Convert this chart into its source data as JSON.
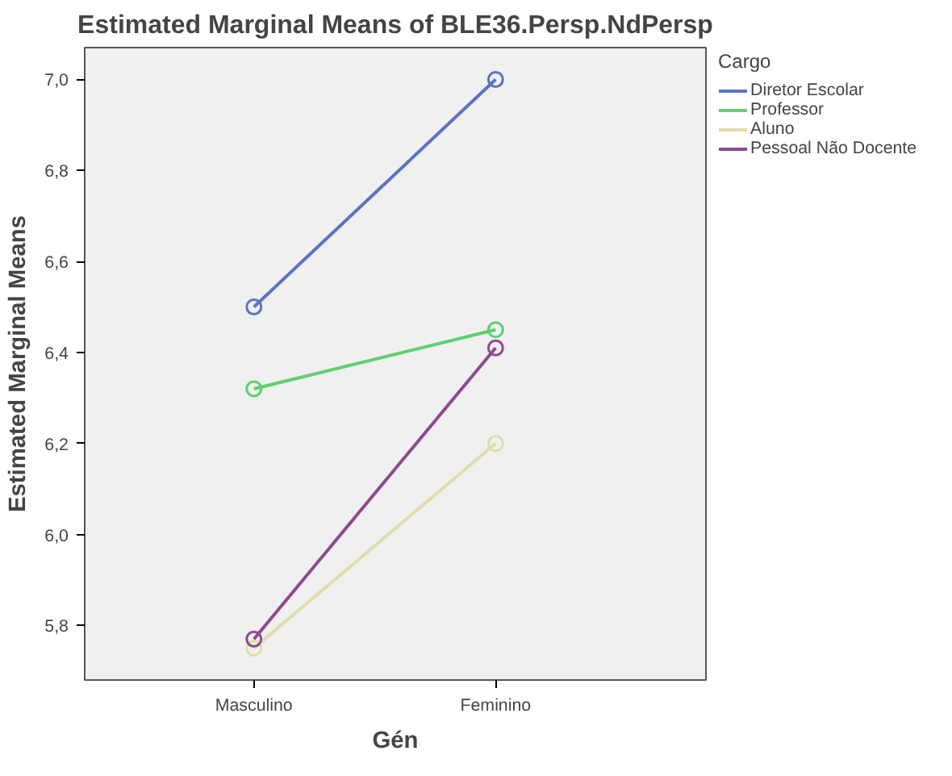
{
  "chart_data": {
    "type": "line",
    "title": "Estimated Marginal Means of BLE36.Persp.NdPersp",
    "xlabel": "Gén",
    "ylabel": "Estimated Marginal Means",
    "legend_title": "Cargo",
    "categories": [
      "Masculino",
      "Feminino"
    ],
    "series": [
      {
        "name": "Diretor Escolar",
        "color": "#5b73c4",
        "values": [
          6.5,
          7.0
        ]
      },
      {
        "name": "Professor",
        "color": "#5fcf6e",
        "values": [
          6.32,
          6.45
        ]
      },
      {
        "name": "Aluno",
        "color": "#e0dca8",
        "values": [
          5.75,
          6.2
        ]
      },
      {
        "name": "Pessoal Não Docente",
        "color": "#8e4a8e",
        "values": [
          5.77,
          6.41
        ]
      }
    ],
    "ylim": [
      5.68,
      7.07
    ],
    "yticks": [
      {
        "value": 5.8,
        "label": "5,8"
      },
      {
        "value": 6.0,
        "label": "6,0"
      },
      {
        "value": 6.2,
        "label": "6,2"
      },
      {
        "value": 6.4,
        "label": "6,4"
      },
      {
        "value": 6.6,
        "label": "6,6"
      },
      {
        "value": 6.8,
        "label": "6,8"
      },
      {
        "value": 7.0,
        "label": "7,0"
      }
    ],
    "marker": "circle",
    "line_style": "solid",
    "grid": false,
    "legend": "right"
  }
}
